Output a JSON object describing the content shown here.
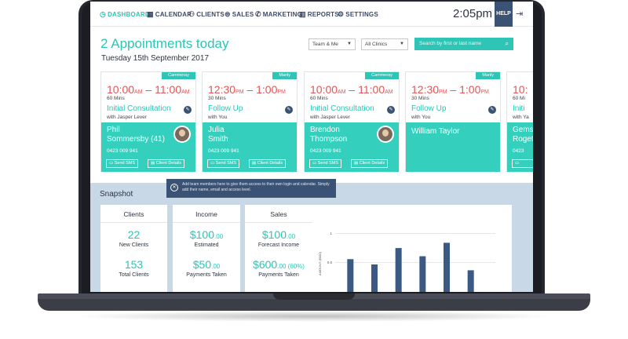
{
  "nav": {
    "items": [
      {
        "label": "DASHBOARD",
        "icon": "clock-icon",
        "active": true
      },
      {
        "label": "CALENDAR",
        "icon": "calendar-icon",
        "active": false
      },
      {
        "label": "CLIENTS",
        "icon": "clients-icon",
        "active": false
      },
      {
        "label": "SALES",
        "icon": "dollar-icon",
        "active": false
      },
      {
        "label": "MARKETING",
        "icon": "megaphone-icon",
        "active": false
      },
      {
        "label": "REPORTS",
        "icon": "bar-chart-icon",
        "active": false
      },
      {
        "label": "SETTINGS",
        "icon": "gear-icon",
        "active": false
      }
    ],
    "time": "2:05pm",
    "help_label": "HELP"
  },
  "header": {
    "title": "2 Appointments today",
    "date": "Tuesday 15th September 2017",
    "staff_filter": "Team & Me",
    "clinic_filter": "All Clinics",
    "search_placeholder": "Search by first or last name"
  },
  "appointments": [
    {
      "clinic": "Cammeray",
      "start": "10:00",
      "start_ampm": "AM",
      "end": "11:00",
      "end_ampm": "AM",
      "duration": "60 Mins",
      "type": "Initial Consultation",
      "with": "with Jasper Lever",
      "client_line1": "Phil",
      "client_line2": "Sommersby (41)",
      "phone": "0423 009 941",
      "sms_label": "Send SMS",
      "details_label": "Client Details"
    },
    {
      "clinic": "Manly",
      "start": "12:30",
      "start_ampm": "PM",
      "end": "1:00",
      "end_ampm": "PM",
      "duration": "30 Mins",
      "type": "Follow Up",
      "with": "with You",
      "client_line1": "Julia",
      "client_line2": "Smith",
      "phone": "0423 009 941",
      "sms_label": "Send SMS",
      "details_label": "Client Details"
    },
    {
      "clinic": "Cammeray",
      "start": "10:00",
      "start_ampm": "AM",
      "end": "11:00",
      "end_ampm": "AM",
      "duration": "60 Mins",
      "type": "Initial Consultation",
      "with": "with Jasper Lever",
      "client_line1": "Brendon",
      "client_line2": "Thompson",
      "phone": "0423 009 941",
      "sms_label": "Send SMS",
      "details_label": "Client Details"
    },
    {
      "clinic": "Manly",
      "start": "12:30",
      "start_ampm": "PM",
      "end": "1:00",
      "end_ampm": "PM",
      "duration": "30 Mins",
      "type": "Follow Up",
      "with": "with You",
      "client_line1": "William Taylor"
    },
    {
      "start": "10:",
      "duration": "60 Mi",
      "type": "Initi",
      "with": "with Ya",
      "client_line1": "Gems",
      "client_line2": "Roget",
      "phone": "0423"
    }
  ],
  "snapshot": {
    "title": "Snapshot",
    "tooltip": "Add team members here to give them access to their own login and calendar. Simply add their name, email and access level.",
    "clients": {
      "title": "Clients",
      "new_value": "22",
      "new_label": "New Clients",
      "total_value": "153",
      "total_label": "Total Clients"
    },
    "income": {
      "title": "Income",
      "estimated_value": "$100",
      "estimated_cents": ".00",
      "estimated_label": "Estimated",
      "taken_value": "$50",
      "taken_cents": ".00",
      "taken_label": "Payments Taken"
    },
    "sales": {
      "title": "Sales",
      "forecast_value": "$100",
      "forecast_cents": ".00",
      "forecast_label": "Forecast Income",
      "taken_value": "$600",
      "taken_cents": ".00 (60%)",
      "taken_label": "Payments Taken"
    }
  },
  "chart_data": {
    "type": "bar",
    "ylabel": "AMOUNT ($000)",
    "yticks": [
      "1",
      "0.5"
    ],
    "ylim": [
      0,
      1.1
    ],
    "values": [
      0.56,
      0.47,
      0.75,
      0.61,
      0.84,
      0.37
    ],
    "bar_color": "#3a5a84"
  },
  "colors": {
    "accent": "#2ec4b6",
    "navy": "#3a5273",
    "time_red": "#e25555"
  }
}
